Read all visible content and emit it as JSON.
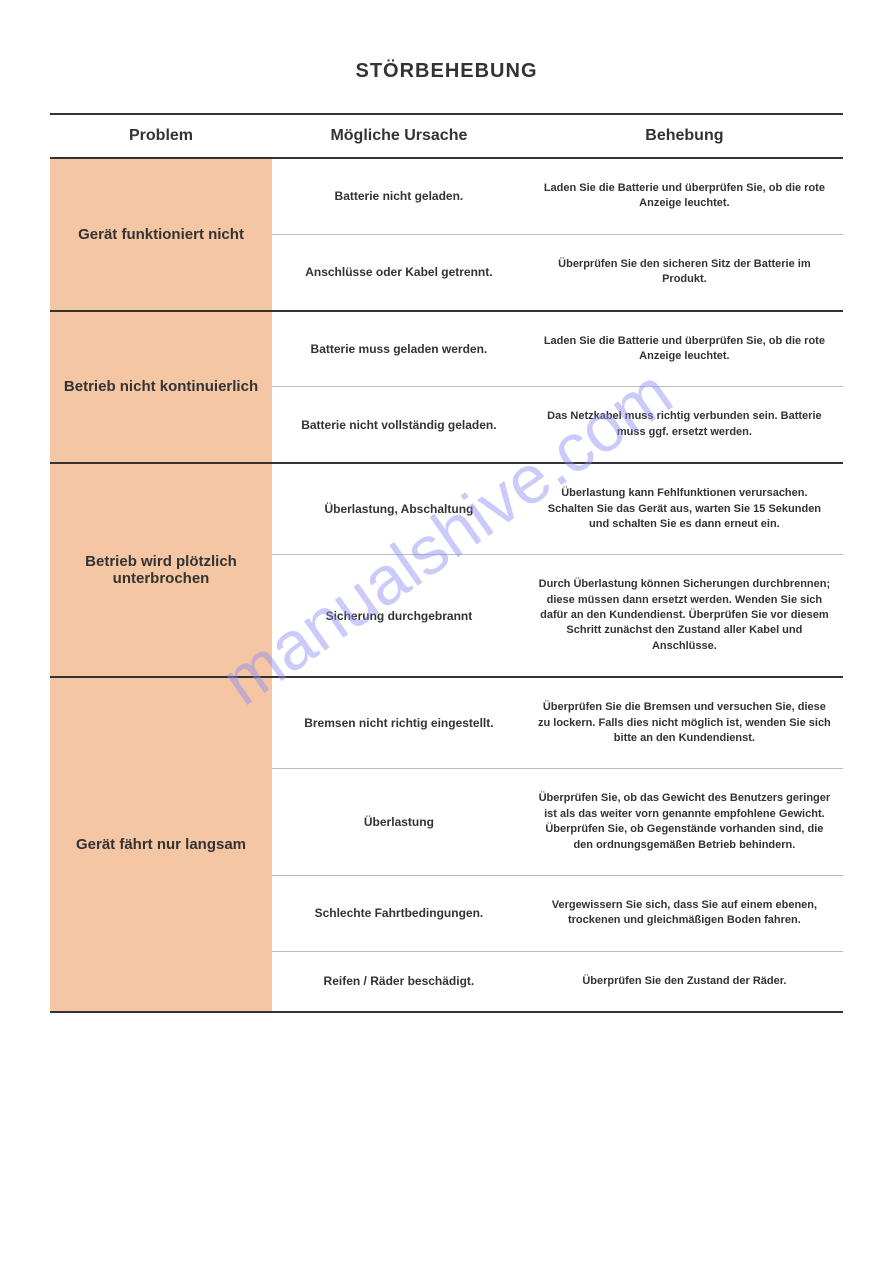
{
  "title": "STÖRBEHEBUNG",
  "watermark": "manualshive.com",
  "headers": {
    "problem": "Problem",
    "cause": "Mögliche Ursache",
    "fix": "Behebung"
  },
  "sections": [
    {
      "problem": "Gerät funktioniert nicht",
      "rows": [
        {
          "cause": "Batterie nicht geladen.",
          "fix": "Laden Sie die Batterie und überprüfen Sie, ob die rote Anzeige leuchtet."
        },
        {
          "cause": "Anschlüsse oder Kabel getrennt.",
          "fix": "Überprüfen Sie den sicheren Sitz der Batterie im Produkt."
        }
      ]
    },
    {
      "problem": "Betrieb nicht kontinuierlich",
      "rows": [
        {
          "cause": "Batterie muss geladen werden.",
          "fix": "Laden Sie die Batterie und überprüfen Sie, ob die rote Anzeige leuchtet."
        },
        {
          "cause": "Batterie nicht vollständig geladen.",
          "fix": "Das Netzkabel muss richtig verbunden sein. Batterie muss ggf. ersetzt werden."
        }
      ]
    },
    {
      "problem": "Betrieb wird plötzlich unterbrochen",
      "rows": [
        {
          "cause": "Überlastung, Abschaltung",
          "fix": "Überlastung kann Fehlfunktionen verursachen. Schalten Sie das Gerät aus, warten Sie 15 Sekunden und schalten Sie es dann erneut ein."
        },
        {
          "cause": "Sicherung durchgebrannt",
          "fix": "Durch Überlastung können Sicherungen durchbrennen; diese müssen dann ersetzt werden. Wenden Sie sich dafür an den Kundendienst. Überprüfen Sie vor diesem Schritt zunächst den Zustand aller Kabel und Anschlüsse."
        }
      ]
    },
    {
      "problem": "Gerät fährt nur langsam",
      "rows": [
        {
          "cause": "Bremsen nicht richtig eingestellt.",
          "fix": "Überprüfen Sie die Bremsen und versuchen Sie, diese zu lockern. Falls dies nicht möglich ist, wenden Sie sich bitte an den Kundendienst."
        },
        {
          "cause": "Überlastung",
          "fix": "Überprüfen Sie, ob das Gewicht des Benutzers geringer ist als das weiter vorn genannte empfohlene Gewicht. Überprüfen Sie, ob Gegenstände vorhanden sind, die den ordnungsgemäßen Betrieb behindern."
        },
        {
          "cause": "Schlechte Fahrtbedingungen.",
          "fix": "Vergewissern Sie sich, dass Sie auf einem ebenen, trockenen und gleichmäßigen Boden fahren."
        },
        {
          "cause": "Reifen / Räder beschädigt.",
          "fix": "Überprüfen Sie den Zustand der Räder."
        }
      ]
    }
  ],
  "styling": {
    "problem_bg_color": "#f4c6a3",
    "border_color": "#333333",
    "light_border_color": "#bbbbbb",
    "background_color": "#ffffff",
    "text_color": "#333333",
    "watermark_color": "#8c8cf7",
    "title_fontsize": 20,
    "header_fontsize": 16,
    "problem_fontsize": 15,
    "cause_fontsize": 12,
    "fix_fontsize": 11
  }
}
